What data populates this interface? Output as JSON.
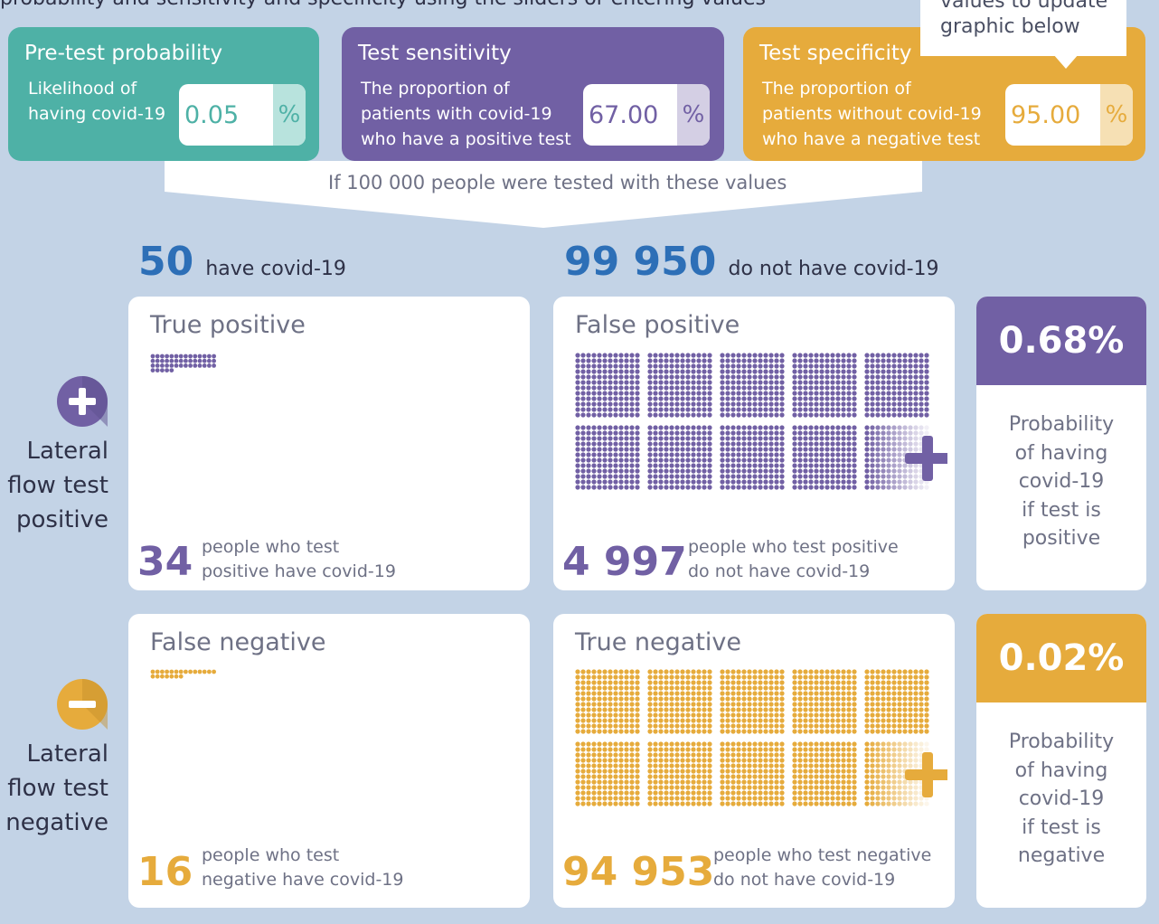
{
  "intro_text": "probability and sensitivity and specificity using the sliders or entering values",
  "tooltip": {
    "line1": "values to update",
    "line2": "graphic below"
  },
  "inputs": {
    "pretest": {
      "title": "Pre-test probability",
      "desc1": "Likelihood of",
      "desc2": "having covid-19",
      "value": "0.05",
      "unit": "%"
    },
    "sensitivity": {
      "title": "Test sensitivity",
      "desc1": "The proportion of",
      "desc2": "patients with covid-19",
      "desc3": "who have a positive test",
      "value": "67.00",
      "unit": "%"
    },
    "specificity": {
      "title": "Test specificity",
      "desc1": "The proportion of",
      "desc2": "patients without covid-19",
      "desc3": "who have a negative test",
      "value": "95.00",
      "unit": "%"
    }
  },
  "funnel_text": "If 100 000 people were tested with these values",
  "population": {
    "have": {
      "count": "50",
      "label": "have covid-19"
    },
    "not_have": {
      "count": "99 950",
      "label": "do not have covid-19"
    }
  },
  "rows": {
    "positive": {
      "line1": "Lateral",
      "line2": "flow test",
      "line3": "positive"
    },
    "negative": {
      "line1": "Lateral",
      "line2": "flow test",
      "line3": "negative"
    }
  },
  "panels": {
    "true_positive": {
      "title": "True positive",
      "count": "34",
      "desc1": "people who test",
      "desc2": "positive have covid-19"
    },
    "false_positive": {
      "title": "False positive",
      "count": "4 997",
      "desc1": "people who test positive",
      "desc2": "do not have covid-19"
    },
    "false_negative": {
      "title": "False negative",
      "count": "16",
      "desc1": "people who test",
      "desc2": "negative have covid-19"
    },
    "true_negative": {
      "title": "True negative",
      "count": "94 953",
      "desc1": "people who test negative",
      "desc2": "do not have covid-19"
    }
  },
  "probabilities": {
    "positive": {
      "value": "0.68%",
      "l1": "Probability",
      "l2": "of having",
      "l3": "covid-19",
      "l4": "if test is",
      "l5": "positive"
    },
    "negative": {
      "value": "0.02%",
      "l1": "Probability",
      "l2": "of having",
      "l3": "covid-19",
      "l4": "if test is",
      "l5": "negative"
    }
  },
  "colors": {
    "teal": "#4eb1a6",
    "purple": "#7160a4",
    "orange": "#e6ab3c",
    "navy": "#2d6fb7",
    "background": "#c3d3e6"
  }
}
